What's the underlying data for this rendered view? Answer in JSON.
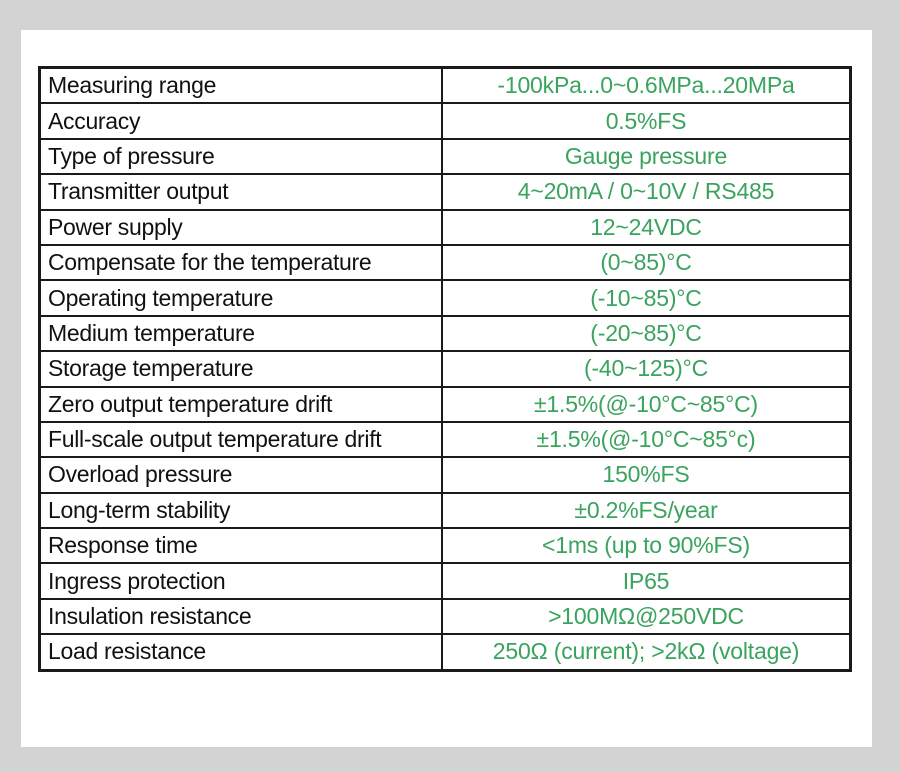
{
  "colors": {
    "background": "#d3d3d3",
    "panel": "#ffffff",
    "border": "#1a1a1a",
    "label_text": "#111111",
    "value_text": "#3aa35d"
  },
  "spec_table": {
    "rows": [
      {
        "label": "Measuring range",
        "value": "-100kPa...0~0.6MPa...20MPa"
      },
      {
        "label": "Accuracy",
        "value": "0.5%FS"
      },
      {
        "label": "Type of pressure",
        "value": "Gauge pressure"
      },
      {
        "label": "Transmitter output",
        "value": "4~20mA  /  0~10V  /  RS485"
      },
      {
        "label": "Power supply",
        "value": "12~24VDC"
      },
      {
        "label": "Compensate for the temperature",
        "value": "(0~85)°C"
      },
      {
        "label": "Operating temperature",
        "value": "(-10~85)°C"
      },
      {
        "label": "Medium temperature",
        "value": "(-20~85)°C"
      },
      {
        "label": "Storage temperature",
        "value": "(-40~125)°C"
      },
      {
        "label": "Zero output temperature drift",
        "value": "±1.5%(@-10°C~85°C)"
      },
      {
        "label": "Full-scale output temperature drift",
        "value": "±1.5%(@-10°C~85°c)"
      },
      {
        "label": "Overload pressure",
        "value": "150%FS"
      },
      {
        "label": "Long-term stability",
        "value": "±0.2%FS/year"
      },
      {
        "label": "Response time",
        "value": "<1ms (up to 90%FS)"
      },
      {
        "label": "Ingress protection",
        "value": "IP65"
      },
      {
        "label": "Insulation resistance",
        "value": ">100MΩ@250VDC"
      },
      {
        "label": "Load resistance",
        "value": "250Ω (current); >2kΩ (voltage)"
      }
    ]
  }
}
